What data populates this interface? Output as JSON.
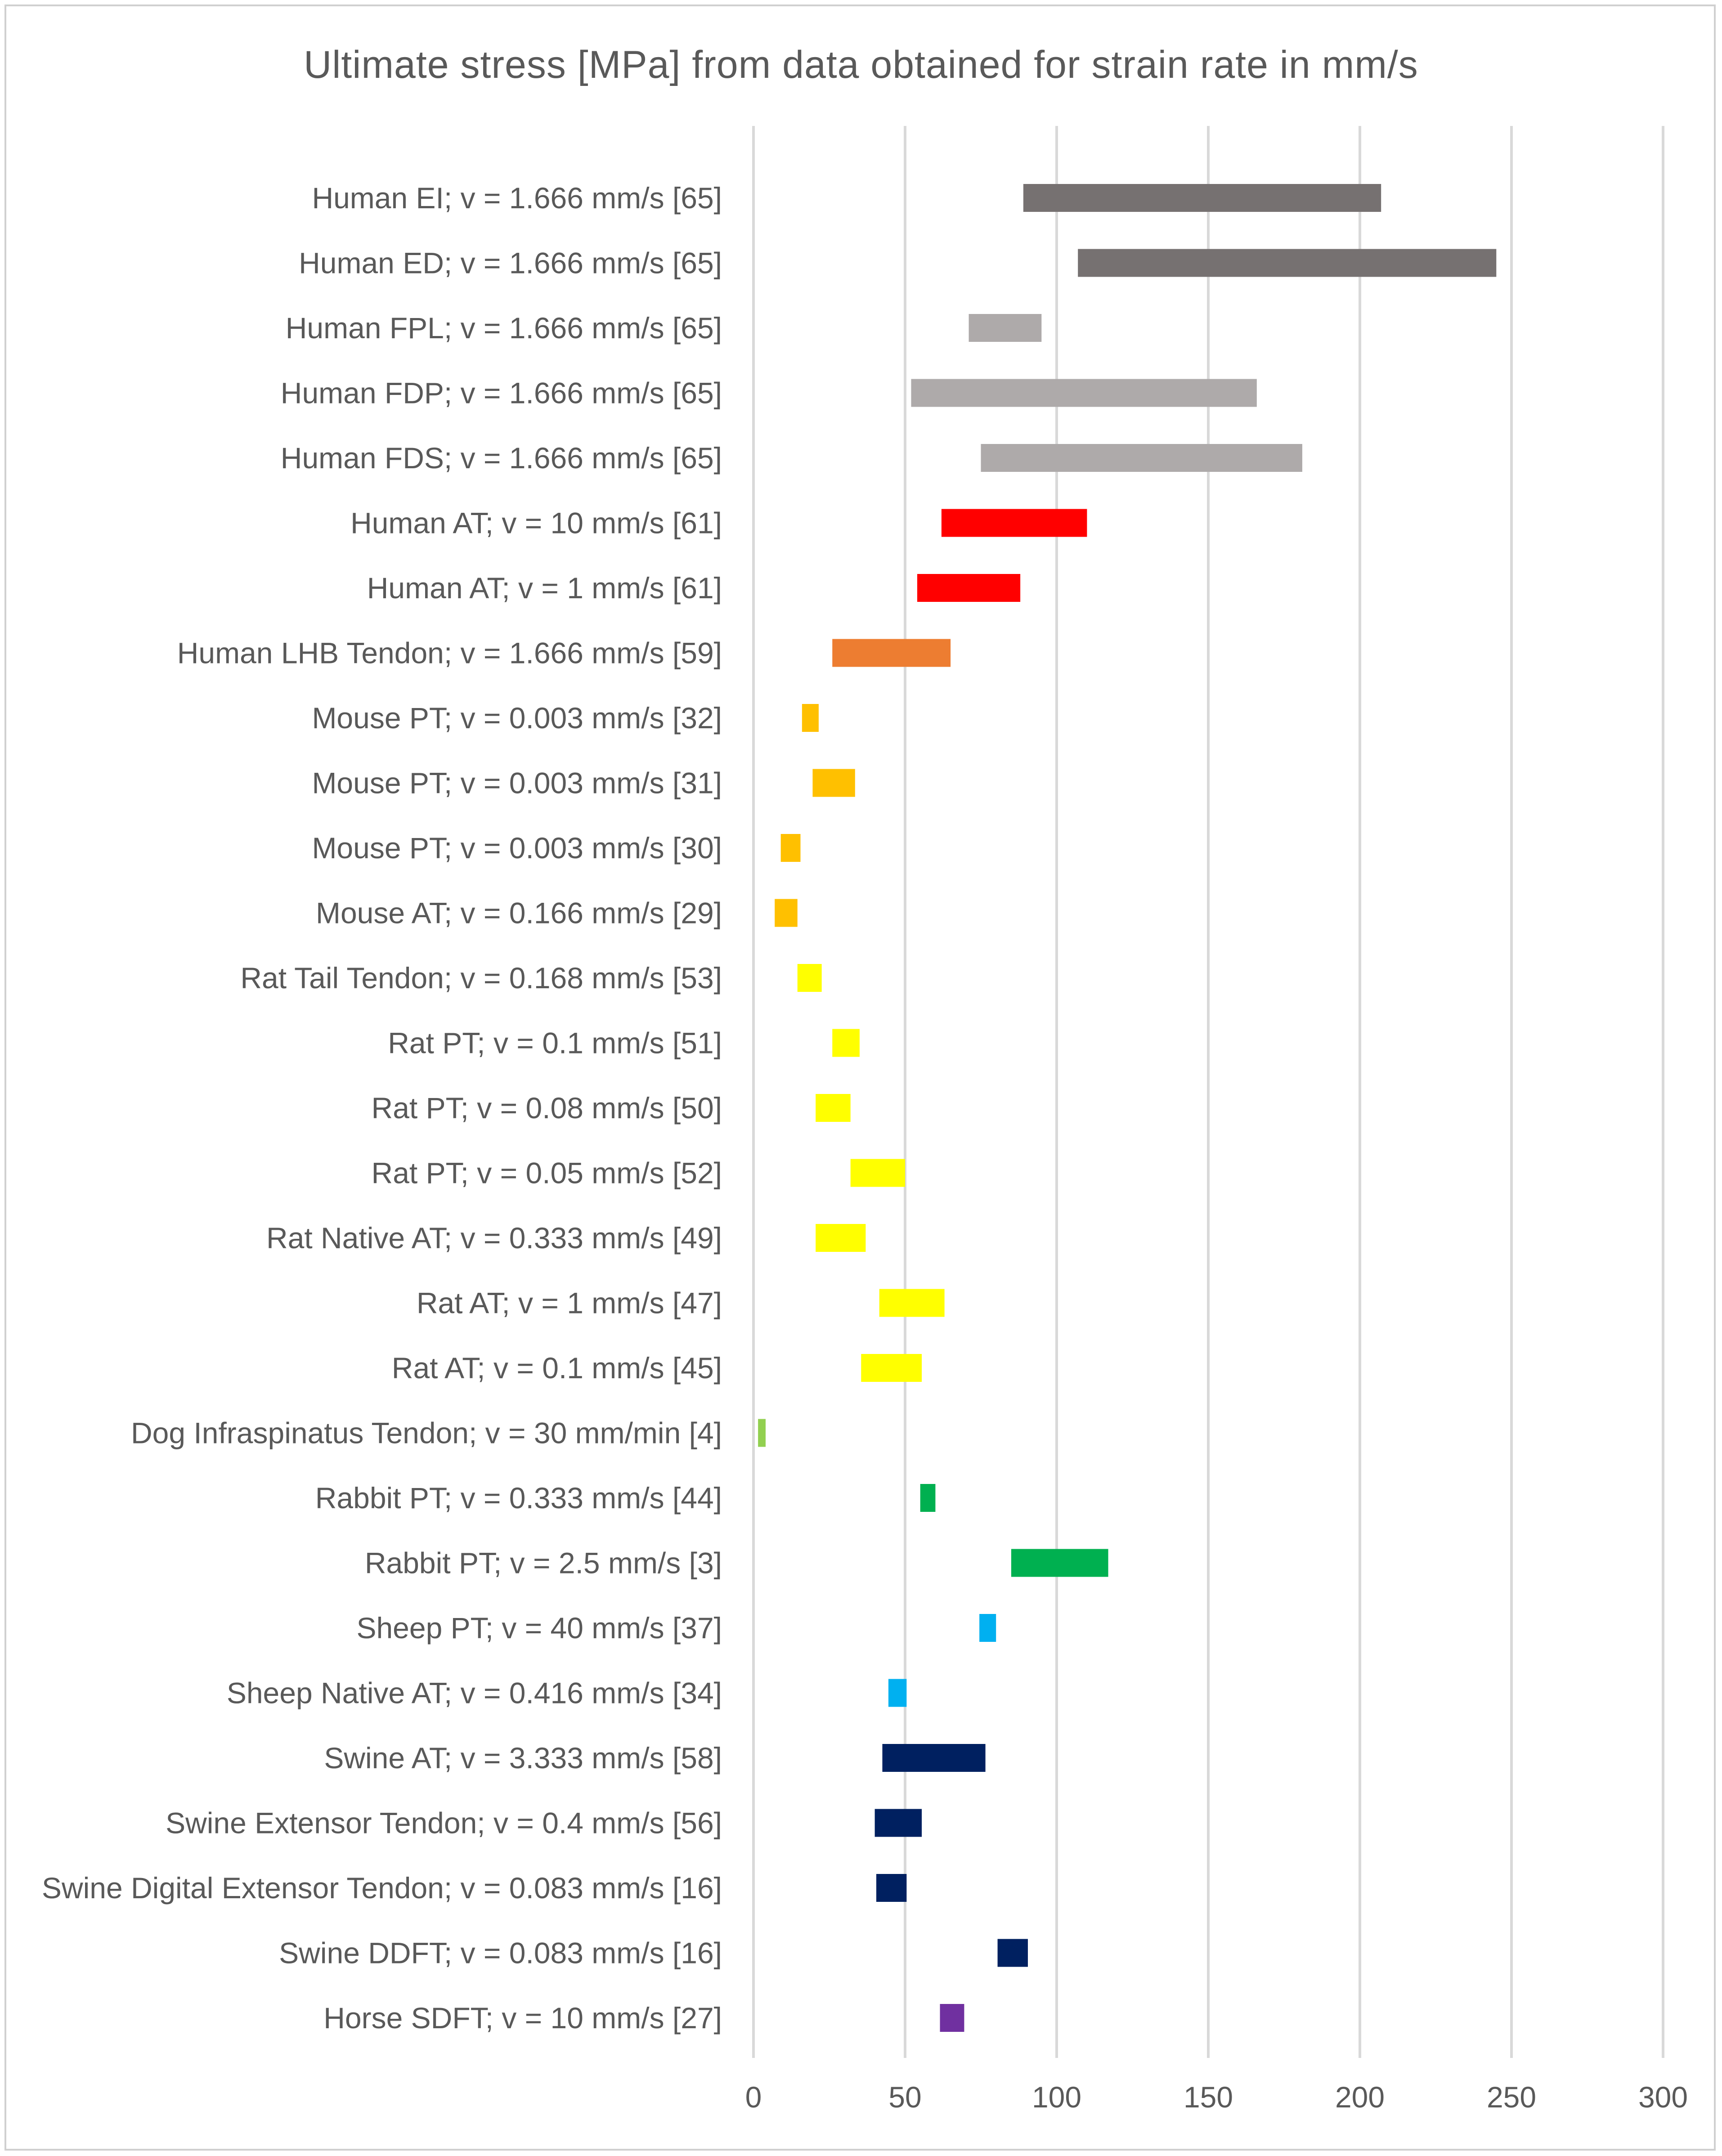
{
  "chart_data": {
    "type": "bar",
    "orientation": "horizontal-floating",
    "title": "Ultimate stress [MPa] from data obtained for strain rate in mm/s",
    "xlabel": "",
    "ylabel": "",
    "xlim": [
      0,
      300
    ],
    "xticks": [
      0,
      50,
      100,
      150,
      200,
      250,
      300
    ],
    "grid": true,
    "categories": [
      "Human EI; v = 1.666 mm/s [65]",
      "Human ED; v = 1.666 mm/s [65]",
      "Human FPL; v = 1.666 mm/s [65]",
      "Human FDP; v = 1.666 mm/s [65]",
      "Human FDS; v = 1.666 mm/s [65]",
      "Human AT; v = 10 mm/s [61]",
      "Human AT; v = 1 mm/s [61]",
      "Human LHB Tendon; v = 1.666 mm/s [59]",
      "Mouse PT; v = 0.003 mm/s [32]",
      "Mouse PT; v = 0.003 mm/s [31]",
      "Mouse PT; v = 0.003 mm/s [30]",
      "Mouse AT; v = 0.166 mm/s [29]",
      "Rat Tail Tendon; v = 0.168 mm/s [53]",
      "Rat PT; v = 0.1 mm/s [51]",
      "Rat PT; v = 0.08 mm/s [50]",
      "Rat PT; v = 0.05 mm/s [52]",
      "Rat Native AT; v = 0.333 mm/s [49]",
      "Rat AT; v = 1 mm/s [47]",
      "Rat AT; v = 0.1 mm/s [45]",
      "Dog Infraspinatus Tendon; v = 30 mm/min [4]",
      "Rabbit PT; v = 0.333 mm/s [44]",
      "Rabbit PT; v = 2.5 mm/s [3]",
      "Sheep PT; v = 40 mm/s [37]",
      "Sheep Native AT; v = 0.416 mm/s [34]",
      "Swine AT; v = 3.333 mm/s [58]",
      "Swine Extensor Tendon; v = 0.4 mm/s [56]",
      "Swine Digital Extensor Tendon; v = 0.083 mm/s [16]",
      "Swine DDFT; v = 0.083 mm/s [16]",
      "Horse SDFT; v = 10 mm/s [27]"
    ],
    "ranges": [
      [
        89,
        207
      ],
      [
        107,
        245
      ],
      [
        71,
        95
      ],
      [
        52,
        166
      ],
      [
        75,
        181
      ],
      [
        62,
        110
      ],
      [
        54,
        88
      ],
      [
        26,
        65
      ],
      [
        16,
        21.5
      ],
      [
        19.5,
        33.5
      ],
      [
        9,
        15.5
      ],
      [
        7,
        14.5
      ],
      [
        14.5,
        22.5
      ],
      [
        26,
        35
      ],
      [
        20.5,
        32
      ],
      [
        32,
        50
      ],
      [
        20.5,
        37
      ],
      [
        41.5,
        63
      ],
      [
        35.5,
        55.5
      ],
      [
        1.5,
        4
      ],
      [
        55,
        60
      ],
      [
        85,
        117
      ],
      [
        74.5,
        80
      ],
      [
        44.5,
        50.5
      ],
      [
        42.5,
        76.5
      ],
      [
        40,
        55.5
      ],
      [
        40.5,
        50.5
      ],
      [
        80.5,
        90.5
      ],
      [
        61.5,
        69.5
      ]
    ],
    "colors": [
      "#767171",
      "#767171",
      "#aeaaaa",
      "#aeaaaa",
      "#aeaaaa",
      "#ff0000",
      "#ff0000",
      "#ed7d31",
      "#ffc000",
      "#ffc000",
      "#ffc000",
      "#ffc000",
      "#ffff00",
      "#ffff00",
      "#ffff00",
      "#ffff00",
      "#ffff00",
      "#ffff00",
      "#ffff00",
      "#92d050",
      "#00b050",
      "#00b050",
      "#00b0f0",
      "#00b0f0",
      "#002060",
      "#002060",
      "#002060",
      "#002060",
      "#7030a0"
    ],
    "gridline_color": "#d9d9d9",
    "text_color": "#595959"
  }
}
